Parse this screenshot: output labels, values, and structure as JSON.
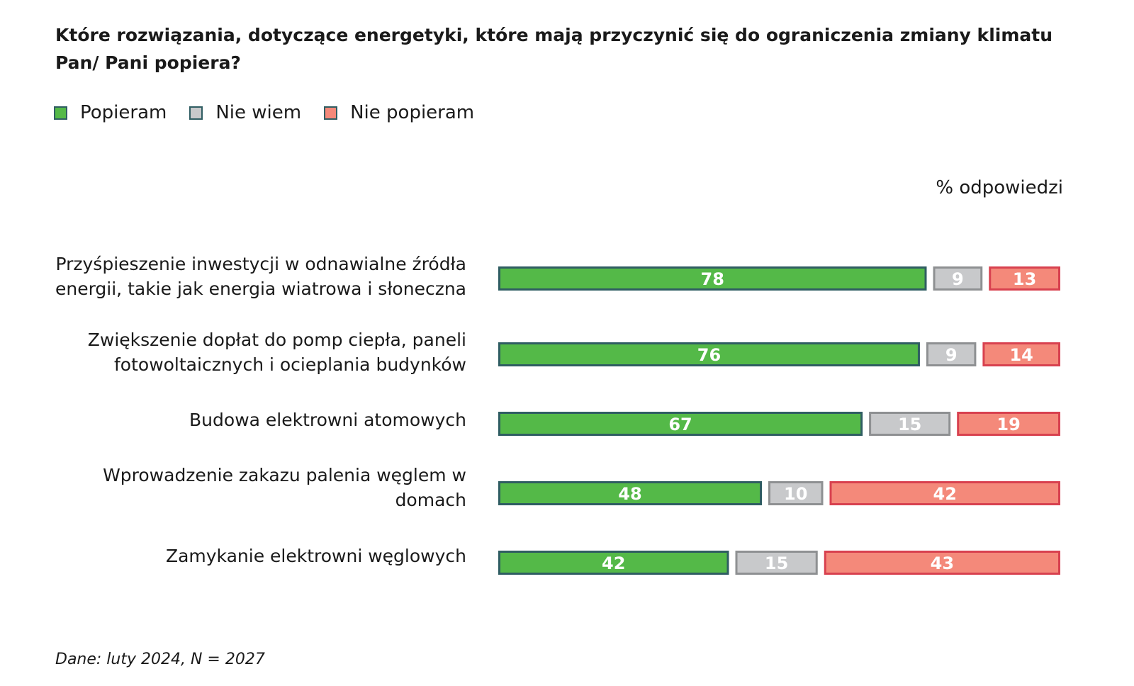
{
  "chart_data": {
    "type": "bar",
    "orientation": "horizontal",
    "stacked": true,
    "title": "Które rozwiązania, dotyczące energetyki, które mają przyczynić się do ograniczenia zmiany klimatu Pan/ Pani popiera?",
    "unit_label": "% odpowiedzi",
    "categories": [
      "Przyśpieszenie inwestycji w odnawialne źródła energii, takie jak energia wiatrowa i słoneczna",
      "Zwiększenie dopłat do pomp ciepła, paneli fotowoltaicznych i ocieplania budynków",
      "Budowa elektrowni atomowych",
      "Wprowadzenie zakazu palenia węglem w domach",
      "Zamykanie elektrowni węglowych"
    ],
    "series": [
      {
        "name": "Popieram",
        "color": "#54b948",
        "values": [
          78,
          76,
          67,
          48,
          42
        ]
      },
      {
        "name": "Nie wiem",
        "color": "#c8c9cb",
        "values": [
          9,
          9,
          15,
          10,
          15
        ]
      },
      {
        "name": "Nie popieram",
        "color": "#f4897a",
        "values": [
          13,
          14,
          19,
          42,
          43
        ]
      }
    ],
    "legend": "top-left",
    "source": "Dane: luty 2024, N = 2027"
  }
}
